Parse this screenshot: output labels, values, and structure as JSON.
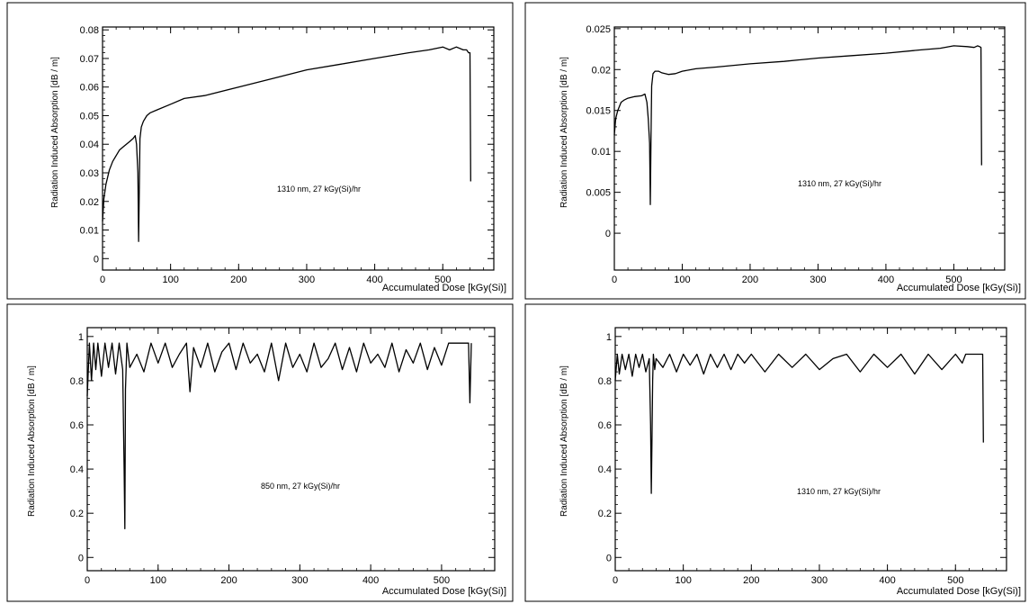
{
  "chart_data": [
    {
      "type": "line",
      "ylabel": "Radiation Induced Absorption [dB / m]",
      "xlabel": "Accumulated Dose [kGy(Si)]",
      "annotation": "1310 nm, 27 kGy(Si)/hr",
      "xlim": [
        0,
        575
      ],
      "ylim": [
        -0.004,
        0.081
      ],
      "xticks": [
        0,
        100,
        200,
        300,
        400,
        500
      ],
      "xtick_labels": [
        "0",
        "100",
        "200",
        "300",
        "400",
        "500"
      ],
      "yticks": [
        0,
        0.01,
        0.02,
        0.03,
        0.04,
        0.05,
        0.06,
        0.07,
        0.08
      ],
      "ytick_labels": [
        "0",
        "0.01",
        "0.02",
        "0.03",
        "0.04",
        "0.05",
        "0.06",
        "0.07",
        "0.08"
      ],
      "grid": false,
      "series": [
        {
          "color": "#000000",
          "x": [
            0,
            2,
            5,
            10,
            15,
            20,
            25,
            30,
            35,
            40,
            45,
            48,
            50,
            52,
            53,
            54,
            55,
            57,
            60,
            65,
            70,
            80,
            100,
            120,
            150,
            200,
            250,
            300,
            350,
            400,
            450,
            480,
            500,
            510,
            520,
            530,
            535,
            538,
            540,
            541
          ],
          "y": [
            0.013,
            0.021,
            0.026,
            0.031,
            0.034,
            0.036,
            0.038,
            0.039,
            0.04,
            0.041,
            0.042,
            0.043,
            0.04,
            0.03,
            0.006,
            0.025,
            0.042,
            0.046,
            0.048,
            0.05,
            0.051,
            0.052,
            0.054,
            0.056,
            0.057,
            0.06,
            0.063,
            0.066,
            0.068,
            0.07,
            0.072,
            0.073,
            0.074,
            0.073,
            0.074,
            0.073,
            0.073,
            0.072,
            0.072,
            0.027
          ]
        }
      ]
    },
    {
      "type": "line",
      "ylabel": "Radiation Induced Absorption [dB / m]",
      "xlabel": "Accumulated Dose [kGy(Si)]",
      "annotation": "1310 nm, 27 kGy(Si)/hr",
      "xlim": [
        0,
        575
      ],
      "ylim": [
        -0.0045,
        0.0252
      ],
      "xticks": [
        0,
        100,
        200,
        300,
        400,
        500
      ],
      "xtick_labels": [
        "0",
        "100",
        "200",
        "300",
        "400",
        "500"
      ],
      "yticks": [
        0,
        0.005,
        0.01,
        0.015,
        0.02,
        0.025
      ],
      "ytick_labels": [
        "0",
        "0.005",
        "0.01",
        "0.015",
        "0.02",
        "0.025"
      ],
      "grid": false,
      "series": [
        {
          "color": "#000000",
          "x": [
            0,
            2,
            5,
            10,
            15,
            20,
            30,
            40,
            45,
            48,
            50,
            52,
            53,
            54,
            55,
            57,
            60,
            65,
            70,
            80,
            90,
            100,
            120,
            150,
            200,
            250,
            300,
            350,
            400,
            450,
            480,
            500,
            520,
            530,
            535,
            538,
            540,
            541
          ],
          "y": [
            0.012,
            0.014,
            0.015,
            0.016,
            0.0163,
            0.0165,
            0.0167,
            0.0168,
            0.017,
            0.016,
            0.014,
            0.011,
            0.0035,
            0.012,
            0.018,
            0.0195,
            0.0198,
            0.0198,
            0.0196,
            0.0194,
            0.0195,
            0.0198,
            0.0201,
            0.0203,
            0.0207,
            0.021,
            0.0214,
            0.0217,
            0.022,
            0.0224,
            0.0226,
            0.0229,
            0.0228,
            0.0227,
            0.0229,
            0.0228,
            0.0227,
            0.0083
          ]
        }
      ]
    },
    {
      "type": "line",
      "ylabel": "Radiation Induced Absorption [dB / m]",
      "xlabel": "Accumulated Dose [kGy(Si)]",
      "annotation": "850 nm, 27 kGy(Si)/hr",
      "xlim": [
        0,
        575
      ],
      "ylim": [
        -0.06,
        1.04
      ],
      "xticks": [
        0,
        100,
        200,
        300,
        400,
        500
      ],
      "xtick_labels": [
        "0",
        "100",
        "200",
        "300",
        "400",
        "500"
      ],
      "yticks": [
        0,
        0.2,
        0.4,
        0.6,
        0.8,
        1
      ],
      "ytick_labels": [
        "0",
        "0.2",
        "0.4",
        "0.6",
        "0.8",
        "1"
      ],
      "grid": false,
      "series": [
        {
          "color": "#000000",
          "x": [
            0,
            3,
            6,
            9,
            12,
            15,
            20,
            25,
            30,
            35,
            40,
            45,
            50,
            52,
            53,
            54,
            56,
            60,
            70,
            80,
            90,
            100,
            110,
            120,
            130,
            140,
            145,
            150,
            160,
            170,
            180,
            190,
            200,
            210,
            220,
            230,
            240,
            250,
            260,
            270,
            280,
            290,
            300,
            310,
            320,
            330,
            340,
            350,
            360,
            370,
            380,
            390,
            400,
            410,
            420,
            430,
            440,
            450,
            460,
            470,
            480,
            490,
            500,
            510,
            520,
            530,
            535,
            538,
            540,
            542
          ],
          "y": [
            0.73,
            0.97,
            0.8,
            0.97,
            0.85,
            0.97,
            0.82,
            0.97,
            0.86,
            0.97,
            0.83,
            0.97,
            0.85,
            0.4,
            0.13,
            0.76,
            0.97,
            0.86,
            0.92,
            0.84,
            0.97,
            0.88,
            0.97,
            0.86,
            0.92,
            0.97,
            0.75,
            0.95,
            0.86,
            0.97,
            0.84,
            0.93,
            0.97,
            0.85,
            0.97,
            0.88,
            0.92,
            0.84,
            0.97,
            0.8,
            0.97,
            0.86,
            0.92,
            0.84,
            0.97,
            0.86,
            0.9,
            0.97,
            0.85,
            0.95,
            0.84,
            0.97,
            0.88,
            0.92,
            0.86,
            0.97,
            0.84,
            0.94,
            0.88,
            0.97,
            0.85,
            0.95,
            0.87,
            0.97,
            0.97,
            0.97,
            0.97,
            0.97,
            0.7,
            0.97
          ]
        }
      ]
    },
    {
      "type": "line",
      "ylabel": "Radiation Induced Absorption [dB / m]",
      "xlabel": "Accumulated Dose [kGy(Si)]",
      "annotation": "1310 nm, 27 kGy(Si)/hr",
      "xlim": [
        0,
        575
      ],
      "ylim": [
        -0.06,
        1.04
      ],
      "xticks": [
        0,
        100,
        200,
        300,
        400,
        500
      ],
      "xtick_labels": [
        "0",
        "100",
        "200",
        "300",
        "400",
        "500"
      ],
      "yticks": [
        0,
        0.2,
        0.4,
        0.6,
        0.8,
        1
      ],
      "ytick_labels": [
        "0",
        "0.2",
        "0.4",
        "0.6",
        "0.8",
        "1"
      ],
      "grid": false,
      "series": [
        {
          "color": "#000000",
          "x": [
            0,
            3,
            6,
            10,
            15,
            20,
            25,
            30,
            35,
            40,
            45,
            50,
            52,
            53,
            54,
            55,
            56,
            58,
            60,
            70,
            80,
            90,
            100,
            110,
            120,
            130,
            140,
            150,
            160,
            170,
            180,
            190,
            200,
            220,
            240,
            260,
            280,
            300,
            320,
            340,
            360,
            380,
            400,
            420,
            440,
            460,
            480,
            500,
            510,
            515,
            520,
            530,
            540,
            541
          ],
          "y": [
            0.8,
            0.92,
            0.83,
            0.92,
            0.85,
            0.92,
            0.82,
            0.92,
            0.86,
            0.92,
            0.84,
            0.9,
            0.6,
            0.29,
            0.55,
            0.8,
            0.92,
            0.85,
            0.9,
            0.86,
            0.92,
            0.84,
            0.92,
            0.87,
            0.92,
            0.83,
            0.92,
            0.86,
            0.92,
            0.85,
            0.92,
            0.88,
            0.92,
            0.84,
            0.92,
            0.86,
            0.92,
            0.85,
            0.9,
            0.92,
            0.84,
            0.92,
            0.86,
            0.92,
            0.83,
            0.92,
            0.85,
            0.92,
            0.88,
            0.92,
            0.92,
            0.92,
            0.92,
            0.52
          ]
        }
      ]
    }
  ]
}
